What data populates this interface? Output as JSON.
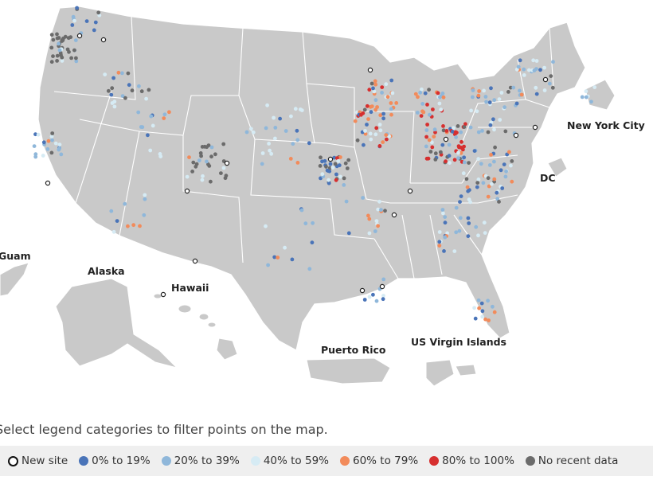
{
  "map": {
    "labels": {
      "guam": "Guam",
      "alaska": "Alaska",
      "hawaii": "Hawaii",
      "puerto_rico": "Puerto Rico",
      "usvi": "US Virgin Islands",
      "nyc": "New York City",
      "dc": "DC"
    }
  },
  "instructions": "Select legend categories to filter points on the map.",
  "legend": {
    "items": [
      {
        "key": "new",
        "label": "New site",
        "color": "#ffffff"
      },
      {
        "key": "c0",
        "label": "0% to 19%",
        "color": "#4a74b8"
      },
      {
        "key": "c1",
        "label": "20% to 39%",
        "color": "#8fb7da"
      },
      {
        "key": "c2",
        "label": "40% to 59%",
        "color": "#d6ebf4"
      },
      {
        "key": "c3",
        "label": "60% to 79%",
        "color": "#f28b5b"
      },
      {
        "key": "c4",
        "label": "80% to 100%",
        "color": "#d62f2f"
      },
      {
        "key": "c5",
        "label": "No recent data",
        "color": "#6b6b6b"
      }
    ]
  }
}
